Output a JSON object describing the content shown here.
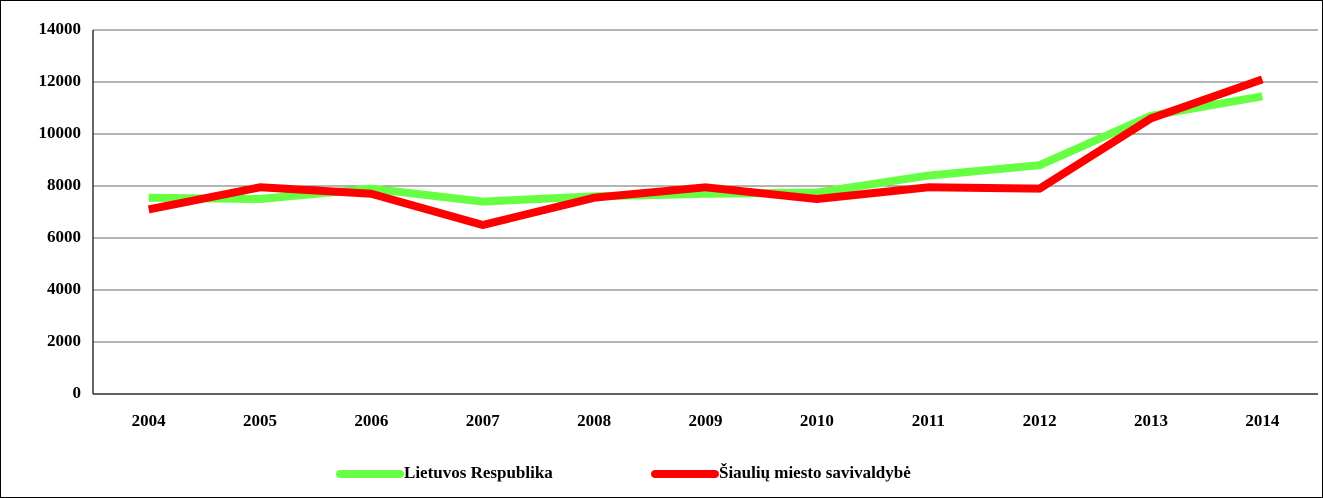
{
  "chart_data": {
    "type": "line",
    "categories": [
      "2004",
      "2005",
      "2006",
      "2007",
      "2008",
      "2009",
      "2010",
      "2011",
      "2012",
      "2013",
      "2014"
    ],
    "series": [
      {
        "name": "Lietuvos Respublika",
        "color": "#66ff44",
        "values": [
          7550,
          7500,
          7900,
          7400,
          7600,
          7700,
          7750,
          8400,
          8800,
          10700,
          11450
        ]
      },
      {
        "name": "Šiaulių miesto savivaldybė",
        "color": "#ff0000",
        "values": [
          7100,
          7950,
          7700,
          6500,
          7550,
          7950,
          7500,
          7950,
          7900,
          10600,
          12100
        ]
      }
    ],
    "ylim": [
      0,
      14000
    ],
    "yticks": [
      0,
      2000,
      4000,
      6000,
      8000,
      10000,
      12000,
      14000
    ],
    "grid": true,
    "legend": "bottom"
  }
}
